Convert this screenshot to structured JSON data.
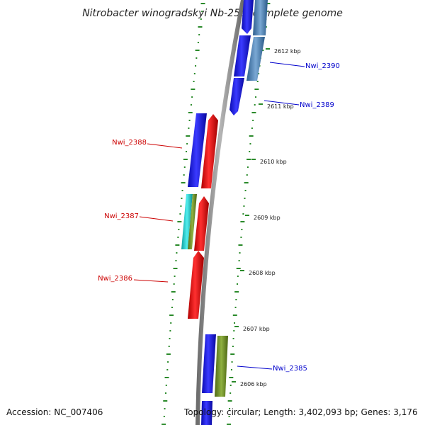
{
  "title": "Nitrobacter winogradskyi Nb-255, complete genome",
  "accession_label": "Accession: NC_007406",
  "topology_label": "Topology: circular; Length: 3,402,093 bp; Genes: 3,176",
  "ticks": [
    {
      "kbp": 2612,
      "label": "2612 kbp"
    },
    {
      "kbp": 2611,
      "label": "2611 kbp"
    },
    {
      "kbp": 2610,
      "label": "2610 kbp"
    },
    {
      "kbp": 2609,
      "label": "2609 kbp"
    },
    {
      "kbp": 2608,
      "label": "2608 kbp"
    },
    {
      "kbp": 2607,
      "label": "2607 kbp"
    },
    {
      "kbp": 2606,
      "label": "2606 kbp"
    }
  ],
  "gene_labels": [
    {
      "name": "Nwi_2390",
      "color": "#0000cc",
      "side": "right"
    },
    {
      "name": "Nwi_2389",
      "color": "#0000cc",
      "side": "right"
    },
    {
      "name": "Nwi_2388",
      "color": "#cc0000",
      "side": "left"
    },
    {
      "name": "Nwi_2387",
      "color": "#cc0000",
      "side": "left"
    },
    {
      "name": "Nwi_2386",
      "color": "#cc0000",
      "side": "left"
    },
    {
      "name": "Nwi_2385",
      "color": "#0000cc",
      "side": "right"
    }
  ],
  "colors": {
    "cds_forward": "#1010ee",
    "cds_reverse": "#ee1010",
    "rna_cyan": "#22cccc",
    "olive": "#6b8e23",
    "steel_blue": "#4a7fb0",
    "backbone": "#888888",
    "skew_green": "#2a8a2a"
  }
}
